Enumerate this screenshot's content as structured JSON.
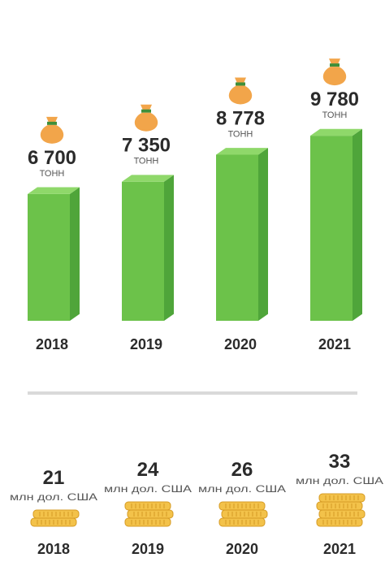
{
  "chart_data": [
    {
      "type": "bar",
      "categories": [
        "2018",
        "2019",
        "2020",
        "2021"
      ],
      "values": [
        6700,
        7350,
        8778,
        9780
      ],
      "value_labels": [
        "6 700",
        "7 350",
        "8 778",
        "9 780"
      ],
      "unit": "тонн",
      "icon": "money-bag-icon",
      "colors": {
        "bar_front": "#6cc24a",
        "bar_side": "#4fa53a",
        "bar_top": "#8fd86a",
        "bag": "#f2a54a",
        "bag_tie": "#3f8f3a"
      }
    },
    {
      "type": "pictogram",
      "categories": [
        "2018",
        "2019",
        "2020",
        "2021"
      ],
      "values": [
        21,
        24,
        26,
        33
      ],
      "unit": "млн дол. США",
      "icon": "coin-stack-icon",
      "coin_stack_counts": [
        2,
        3,
        3,
        4
      ],
      "colors": {
        "coin": "#f3c24a",
        "coin_edge": "#d69b24",
        "divider": "#d9d9d9"
      }
    }
  ]
}
